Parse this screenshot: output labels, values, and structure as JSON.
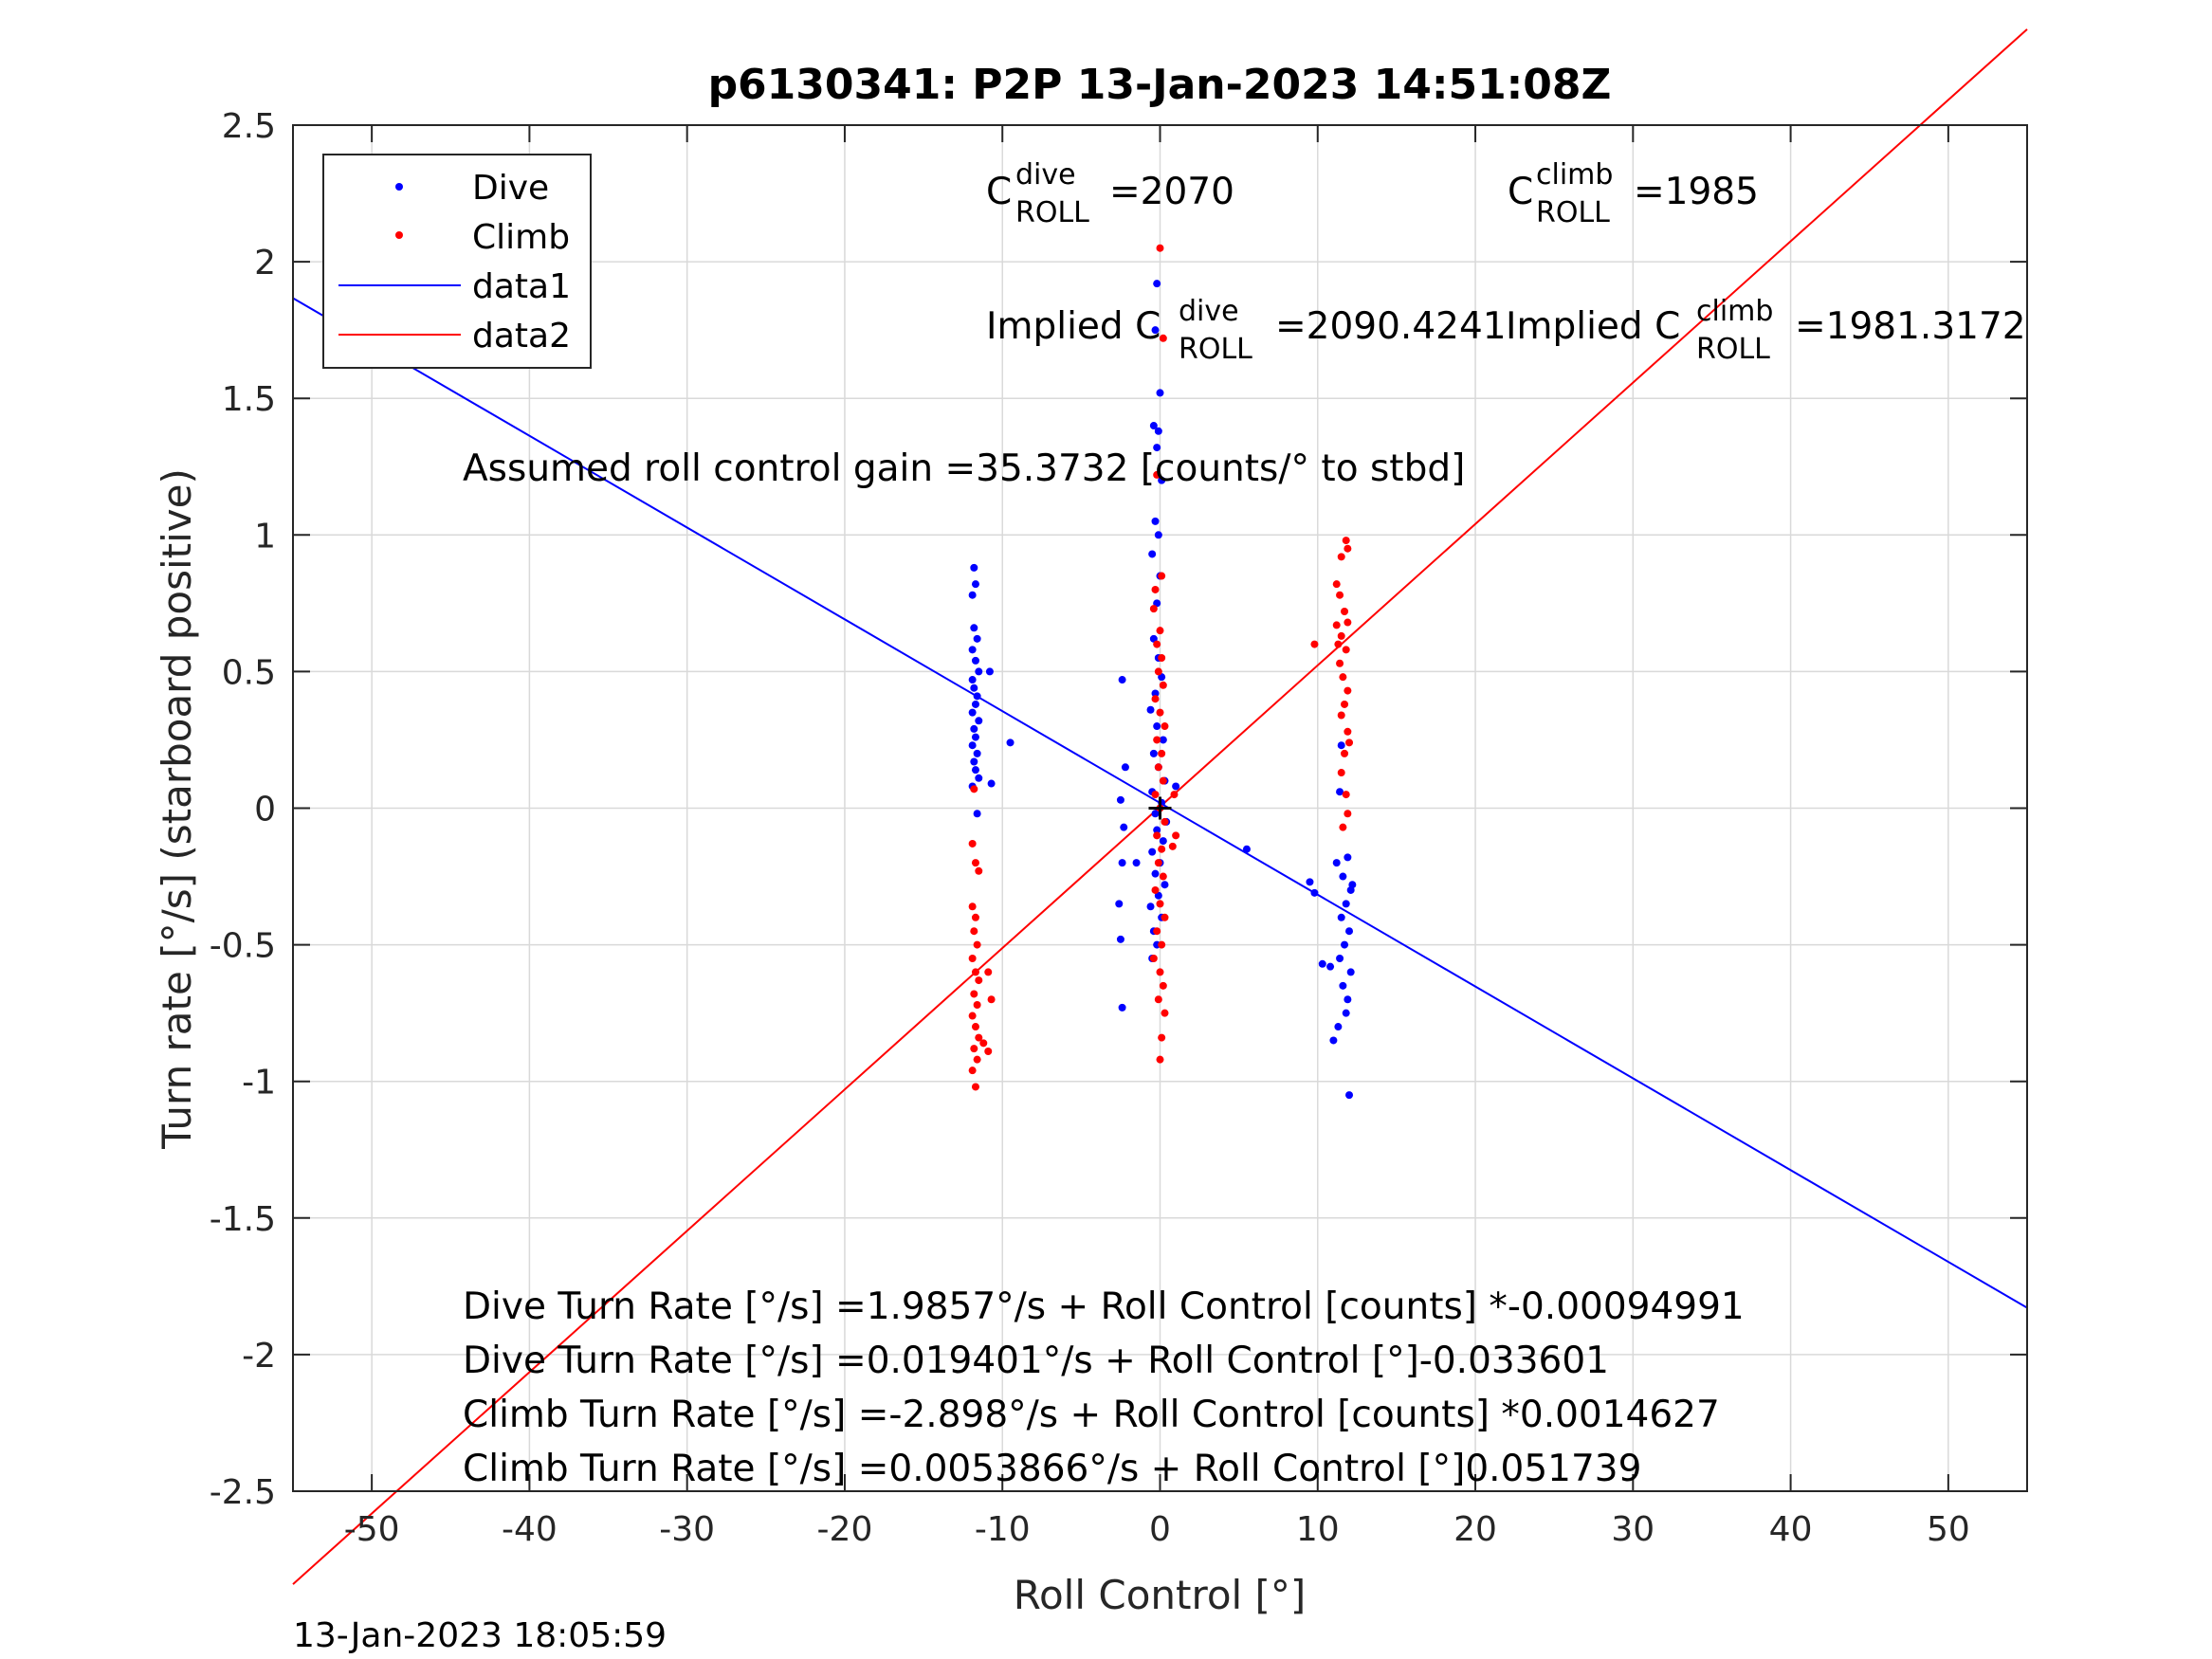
{
  "chart_data": {
    "type": "scatter",
    "title": "p6130341: P2P 13-Jan-2023 14:51:08Z",
    "xlabel": "Roll Control [°]",
    "ylabel": "Turn rate [°/s] (starboard positive)",
    "xlim": [
      -55,
      55
    ],
    "ylim": [
      -2.5,
      2.5
    ],
    "x_ticks": [
      -50,
      -40,
      -30,
      -20,
      -10,
      0,
      10,
      20,
      30,
      40,
      50
    ],
    "x_tick_labels": [
      "-50",
      "-40",
      "-30",
      "-20",
      "-10",
      "0",
      "10",
      "20",
      "30",
      "40",
      "50"
    ],
    "y_ticks": [
      2.5,
      2,
      1.5,
      1,
      0.5,
      0,
      -0.5,
      -1,
      -1.5,
      -2,
      -2.5
    ],
    "y_tick_labels": [
      "2.5",
      "2",
      "1.5",
      "1",
      "0.5",
      "0",
      "-0.5",
      "-1",
      "-1.5",
      "-2",
      "-2.5"
    ],
    "grid": true,
    "legend_position": "top-left",
    "series": [
      {
        "name": "Dive",
        "kind": "points",
        "color": "#0000ff",
        "points": [
          [
            -11.8,
            0.88
          ],
          [
            -11.7,
            0.82
          ],
          [
            -11.9,
            0.78
          ],
          [
            -11.8,
            0.66
          ],
          [
            -11.6,
            0.62
          ],
          [
            -11.9,
            0.58
          ],
          [
            -11.7,
            0.54
          ],
          [
            -11.5,
            0.5
          ],
          [
            -11.9,
            0.47
          ],
          [
            -11.8,
            0.44
          ],
          [
            -11.6,
            0.41
          ],
          [
            -11.7,
            0.38
          ],
          [
            -11.9,
            0.35
          ],
          [
            -11.5,
            0.32
          ],
          [
            -11.8,
            0.29
          ],
          [
            -11.7,
            0.26
          ],
          [
            -11.9,
            0.23
          ],
          [
            -11.6,
            0.2
          ],
          [
            -11.8,
            0.17
          ],
          [
            -11.7,
            0.14
          ],
          [
            -11.5,
            0.11
          ],
          [
            -11.9,
            0.08
          ],
          [
            -10.8,
            0.5
          ],
          [
            -9.5,
            0.24
          ],
          [
            -10.7,
            0.09
          ],
          [
            -11.6,
            -0.02
          ],
          [
            -0.2,
            1.92
          ],
          [
            -0.3,
            1.75
          ],
          [
            0.0,
            1.52
          ],
          [
            -0.4,
            1.4
          ],
          [
            -0.1,
            1.38
          ],
          [
            -0.2,
            1.32
          ],
          [
            0.1,
            1.2
          ],
          [
            -0.3,
            1.05
          ],
          [
            -0.1,
            1.0
          ],
          [
            -0.5,
            0.93
          ],
          [
            0.0,
            0.85
          ],
          [
            -0.2,
            0.75
          ],
          [
            -0.4,
            0.62
          ],
          [
            -0.1,
            0.55
          ],
          [
            0.1,
            0.48
          ],
          [
            -0.3,
            0.42
          ],
          [
            -0.6,
            0.36
          ],
          [
            -0.2,
            0.3
          ],
          [
            0.2,
            0.25
          ],
          [
            -0.4,
            0.2
          ],
          [
            -0.1,
            0.15
          ],
          [
            0.3,
            0.1
          ],
          [
            -0.5,
            0.06
          ],
          [
            0.1,
            0.02
          ],
          [
            -0.3,
            -0.02
          ],
          [
            0.4,
            -0.05
          ],
          [
            -0.2,
            -0.08
          ],
          [
            0.2,
            -0.12
          ],
          [
            -0.5,
            -0.16
          ],
          [
            0.0,
            -0.2
          ],
          [
            -0.3,
            -0.24
          ],
          [
            0.3,
            -0.28
          ],
          [
            -0.1,
            -0.32
          ],
          [
            -0.6,
            -0.36
          ],
          [
            0.1,
            -0.4
          ],
          [
            -0.4,
            -0.45
          ],
          [
            -0.2,
            -0.5
          ],
          [
            -0.5,
            -0.55
          ],
          [
            -2.4,
            0.47
          ],
          [
            -2.2,
            0.15
          ],
          [
            -2.5,
            0.03
          ],
          [
            -2.3,
            -0.07
          ],
          [
            -2.4,
            -0.2
          ],
          [
            -2.6,
            -0.35
          ],
          [
            -2.5,
            -0.48
          ],
          [
            -2.4,
            -0.73
          ],
          [
            -1.5,
            -0.2
          ],
          [
            1.0,
            0.08
          ],
          [
            5.5,
            -0.15
          ],
          [
            9.5,
            -0.27
          ],
          [
            9.8,
            -0.31
          ],
          [
            11.2,
            -0.2
          ],
          [
            11.6,
            -0.25
          ],
          [
            11.9,
            -0.18
          ],
          [
            12.1,
            -0.3
          ],
          [
            11.8,
            -0.35
          ],
          [
            11.5,
            -0.4
          ],
          [
            12.0,
            -0.45
          ],
          [
            11.7,
            -0.5
          ],
          [
            11.4,
            -0.55
          ],
          [
            12.1,
            -0.6
          ],
          [
            11.6,
            -0.65
          ],
          [
            11.9,
            -0.7
          ],
          [
            11.3,
            -0.8
          ],
          [
            11.0,
            -0.85
          ],
          [
            11.8,
            -0.75
          ],
          [
            12.2,
            -0.28
          ],
          [
            12.0,
            -1.05
          ],
          [
            10.8,
            -0.58
          ],
          [
            10.3,
            -0.57
          ],
          [
            11.4,
            0.06
          ],
          [
            11.5,
            0.23
          ]
        ]
      },
      {
        "name": "Climb",
        "kind": "points",
        "color": "#ff0000",
        "points": [
          [
            -11.8,
            0.07
          ],
          [
            -11.9,
            -0.13
          ],
          [
            -11.7,
            -0.2
          ],
          [
            -11.5,
            -0.23
          ],
          [
            -11.9,
            -0.36
          ],
          [
            -11.7,
            -0.4
          ],
          [
            -11.8,
            -0.45
          ],
          [
            -11.6,
            -0.5
          ],
          [
            -11.9,
            -0.55
          ],
          [
            -11.7,
            -0.6
          ],
          [
            -11.5,
            -0.63
          ],
          [
            -11.8,
            -0.68
          ],
          [
            -11.6,
            -0.72
          ],
          [
            -11.9,
            -0.76
          ],
          [
            -11.7,
            -0.8
          ],
          [
            -11.5,
            -0.84
          ],
          [
            -11.8,
            -0.88
          ],
          [
            -11.6,
            -0.92
          ],
          [
            -11.9,
            -0.96
          ],
          [
            -11.7,
            -1.02
          ],
          [
            -10.9,
            -0.6
          ],
          [
            -10.7,
            -0.7
          ],
          [
            -10.9,
            -0.89
          ],
          [
            -11.2,
            -0.86
          ],
          [
            0.0,
            2.05
          ],
          [
            0.2,
            1.72
          ],
          [
            -0.2,
            1.22
          ],
          [
            0.1,
            0.85
          ],
          [
            -0.3,
            0.8
          ],
          [
            -0.4,
            0.73
          ],
          [
            0.0,
            0.65
          ],
          [
            -0.2,
            0.6
          ],
          [
            0.1,
            0.55
          ],
          [
            -0.1,
            0.5
          ],
          [
            0.2,
            0.45
          ],
          [
            -0.3,
            0.4
          ],
          [
            0.0,
            0.35
          ],
          [
            0.3,
            0.3
          ],
          [
            -0.2,
            0.25
          ],
          [
            0.1,
            0.2
          ],
          [
            -0.1,
            0.15
          ],
          [
            0.2,
            0.1
          ],
          [
            -0.3,
            0.05
          ],
          [
            0.0,
            0.0
          ],
          [
            0.3,
            -0.05
          ],
          [
            -0.2,
            -0.1
          ],
          [
            0.1,
            -0.15
          ],
          [
            -0.1,
            -0.2
          ],
          [
            0.2,
            -0.25
          ],
          [
            -0.3,
            -0.3
          ],
          [
            0.0,
            -0.35
          ],
          [
            0.3,
            -0.4
          ],
          [
            -0.2,
            -0.45
          ],
          [
            0.1,
            -0.5
          ],
          [
            -0.4,
            -0.55
          ],
          [
            0.0,
            -0.6
          ],
          [
            0.2,
            -0.65
          ],
          [
            -0.1,
            -0.7
          ],
          [
            0.3,
            -0.75
          ],
          [
            0.1,
            -0.84
          ],
          [
            0.0,
            -0.92
          ],
          [
            0.8,
            -0.14
          ],
          [
            1.0,
            -0.1
          ],
          [
            0.9,
            0.05
          ],
          [
            11.2,
            0.82
          ],
          [
            11.5,
            0.92
          ],
          [
            11.8,
            0.98
          ],
          [
            11.9,
            0.95
          ],
          [
            11.4,
            0.78
          ],
          [
            11.7,
            0.72
          ],
          [
            11.9,
            0.68
          ],
          [
            11.5,
            0.63
          ],
          [
            11.8,
            0.58
          ],
          [
            11.4,
            0.53
          ],
          [
            11.6,
            0.48
          ],
          [
            11.9,
            0.43
          ],
          [
            11.7,
            0.38
          ],
          [
            11.5,
            0.34
          ],
          [
            11.9,
            0.28
          ],
          [
            12.0,
            0.24
          ],
          [
            11.7,
            0.2
          ],
          [
            11.5,
            0.13
          ],
          [
            11.8,
            0.05
          ],
          [
            11.9,
            -0.02
          ],
          [
            11.6,
            -0.07
          ],
          [
            11.3,
            0.6
          ],
          [
            9.8,
            0.6
          ],
          [
            11.2,
            0.67
          ]
        ]
      },
      {
        "name": "data1",
        "kind": "line",
        "color": "#0000ff",
        "x": [
          -55,
          55
        ],
        "y": [
          1.8669,
          -1.8286
        ]
      },
      {
        "name": "data2",
        "kind": "line",
        "color": "#ff0000",
        "x": [
          -55,
          55
        ],
        "y": [
          -2.8403,
          2.851
        ]
      }
    ],
    "annotations": {
      "c_dive_base": "C",
      "c_dive_sup": "dive",
      "c_dive_sub": "ROLL",
      "c_dive_value": "=2070",
      "c_climb_base": "C",
      "c_climb_sup": "climb",
      "c_climb_sub": "ROLL",
      "c_climb_value": "=1985",
      "implied_dive_prefix": "Implied C",
      "implied_dive_sup": "dive",
      "implied_dive_sub": "ROLL",
      "implied_dive_value": "=2090.4241",
      "implied_climb_prefix": "Implied C",
      "implied_climb_sup": "climb",
      "implied_climb_sub": "ROLL",
      "implied_climb_value": "=1981.3172",
      "gain": "Assumed roll control gain =35.3732 [counts/° to stbd]",
      "fit_lines": [
        "Dive Turn Rate [°/s] =1.9857°/s + Roll Control [counts] *-0.00094991",
        "Dive Turn Rate [°/s] =0.019401°/s + Roll Control [°]-0.033601",
        "Climb Turn Rate [°/s] =-2.898°/s + Roll Control [counts] *0.0014627",
        "Climb Turn Rate [°/s] =0.0053866°/s + Roll Control [°]0.051739"
      ]
    },
    "timestamp": "13-Jan-2023 18:05:59"
  }
}
